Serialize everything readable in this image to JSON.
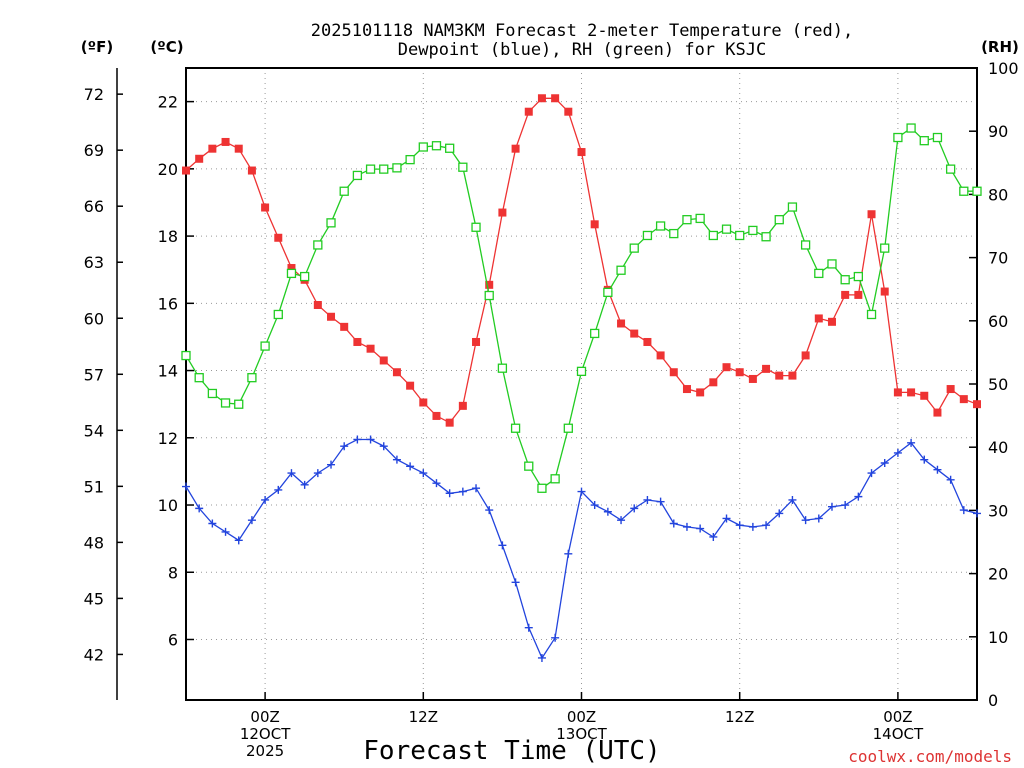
{
  "chart_data": {
    "type": "line",
    "title_line1": "2025101118 NAM3KM Forecast 2-meter Temperature (red),",
    "title_line2": "Dewpoint (blue), RH (green) for KSJC",
    "xlabel": "Forecast Time (UTC)",
    "credit": "coolwx.com/models",
    "units": {
      "fahrenheit": "(ºF)",
      "celsius": "(ºC)",
      "rh": "(RH)"
    },
    "x_range_hours": [
      0,
      60
    ],
    "celsius_range": [
      4.2,
      23.0
    ],
    "rh_range": [
      0,
      100
    ],
    "celsius_ticks": [
      6,
      8,
      10,
      12,
      14,
      16,
      18,
      20,
      22
    ],
    "fahrenheit_ticks": [
      42,
      45,
      48,
      51,
      54,
      57,
      60,
      63,
      66,
      69,
      72
    ],
    "rh_ticks": [
      0,
      10,
      20,
      30,
      40,
      50,
      60,
      70,
      80,
      90,
      100
    ],
    "x_ticks": [
      {
        "hour": 6,
        "lines": [
          "00Z",
          "12OCT",
          "2025"
        ]
      },
      {
        "hour": 18,
        "lines": [
          "12Z"
        ]
      },
      {
        "hour": 30,
        "lines": [
          "00Z",
          "13OCT"
        ]
      },
      {
        "hour": 42,
        "lines": [
          "12Z"
        ]
      },
      {
        "hour": 54,
        "lines": [
          "00Z",
          "14OCT"
        ]
      }
    ],
    "series": [
      {
        "name": "2-meter Temperature",
        "axis": "celsius",
        "color": "#ee3333",
        "marker": "filled-square",
        "x": [
          0,
          1,
          2,
          3,
          4,
          5,
          6,
          7,
          8,
          9,
          10,
          11,
          12,
          13,
          14,
          15,
          16,
          17,
          18,
          19,
          20,
          21,
          22,
          23,
          24,
          25,
          26,
          27,
          28,
          29,
          30,
          31,
          32,
          33,
          34,
          35,
          36,
          37,
          38,
          39,
          40,
          41,
          42,
          43,
          44,
          45,
          46,
          47,
          48,
          49,
          50,
          51,
          52,
          53,
          54,
          55,
          56,
          57,
          58,
          59,
          60
        ],
        "values": [
          19.95,
          20.3,
          20.6,
          20.8,
          20.6,
          19.95,
          18.85,
          17.95,
          17.05,
          16.7,
          15.95,
          15.6,
          15.3,
          14.85,
          14.65,
          14.3,
          13.95,
          13.55,
          13.05,
          12.65,
          12.45,
          12.95,
          14.85,
          16.55,
          18.7,
          20.6,
          21.7,
          22.1,
          22.1,
          21.7,
          20.5,
          18.35,
          16.4,
          15.4,
          15.1,
          14.85,
          14.45,
          13.95,
          13.45,
          13.35,
          13.65,
          14.1,
          13.95,
          13.75,
          14.05,
          13.85,
          13.85,
          14.45,
          15.55,
          15.45,
          16.25,
          16.25,
          18.65,
          16.35,
          13.35,
          13.35,
          13.25,
          12.75,
          13.45,
          13.15,
          13.0
        ]
      },
      {
        "name": "Dewpoint",
        "axis": "celsius",
        "color": "#2244dd",
        "marker": "plus",
        "x": [
          0,
          1,
          2,
          3,
          4,
          5,
          6,
          7,
          8,
          9,
          10,
          11,
          12,
          13,
          14,
          15,
          16,
          17,
          18,
          19,
          20,
          21,
          22,
          23,
          24,
          25,
          26,
          27,
          28,
          29,
          30,
          31,
          32,
          33,
          34,
          35,
          36,
          37,
          38,
          39,
          40,
          41,
          42,
          43,
          44,
          45,
          46,
          47,
          48,
          49,
          50,
          51,
          52,
          53,
          54,
          55,
          56,
          57,
          58,
          59,
          60
        ],
        "values": [
          10.55,
          9.9,
          9.45,
          9.2,
          8.95,
          9.55,
          10.15,
          10.45,
          10.95,
          10.6,
          10.95,
          11.2,
          11.75,
          11.95,
          11.95,
          11.75,
          11.35,
          11.15,
          10.95,
          10.65,
          10.35,
          10.4,
          10.5,
          9.85,
          8.8,
          7.7,
          6.35,
          5.45,
          6.05,
          8.55,
          10.4,
          10.0,
          9.8,
          9.55,
          9.9,
          10.15,
          10.1,
          9.45,
          9.35,
          9.3,
          9.05,
          9.6,
          9.4,
          9.35,
          9.4,
          9.75,
          10.15,
          9.55,
          9.6,
          9.95,
          10.0,
          10.25,
          10.95,
          11.25,
          11.55,
          11.85,
          11.35,
          11.05,
          10.75,
          9.85,
          9.75
        ]
      },
      {
        "name": "RH",
        "axis": "rh",
        "color": "#22cc22",
        "marker": "open-square",
        "x": [
          0,
          1,
          2,
          3,
          4,
          5,
          6,
          7,
          8,
          9,
          10,
          11,
          12,
          13,
          14,
          15,
          16,
          17,
          18,
          19,
          20,
          21,
          22,
          23,
          24,
          25,
          26,
          27,
          28,
          29,
          30,
          31,
          32,
          33,
          34,
          35,
          36,
          37,
          38,
          39,
          40,
          41,
          42,
          43,
          44,
          45,
          46,
          47,
          48,
          49,
          50,
          51,
          52,
          53,
          54,
          55,
          56,
          57,
          58,
          59,
          60
        ],
        "values": [
          54.5,
          51,
          48.5,
          47,
          46.8,
          51,
          56,
          61,
          67.5,
          67,
          72,
          75.5,
          80.5,
          83,
          84,
          84,
          84.2,
          85.5,
          87.5,
          87.7,
          87.3,
          84.3,
          74.8,
          64,
          52.5,
          43,
          37,
          33.5,
          35,
          43,
          52,
          58,
          64.5,
          68,
          71.5,
          73.5,
          75,
          73.8,
          76,
          76.2,
          73.5,
          74.5,
          73.5,
          74.3,
          73.3,
          76,
          78,
          72,
          67.5,
          69,
          66.5,
          67,
          61,
          71.5,
          89,
          90.5,
          88.5,
          89,
          84,
          80.5,
          80.5
        ]
      }
    ]
  }
}
